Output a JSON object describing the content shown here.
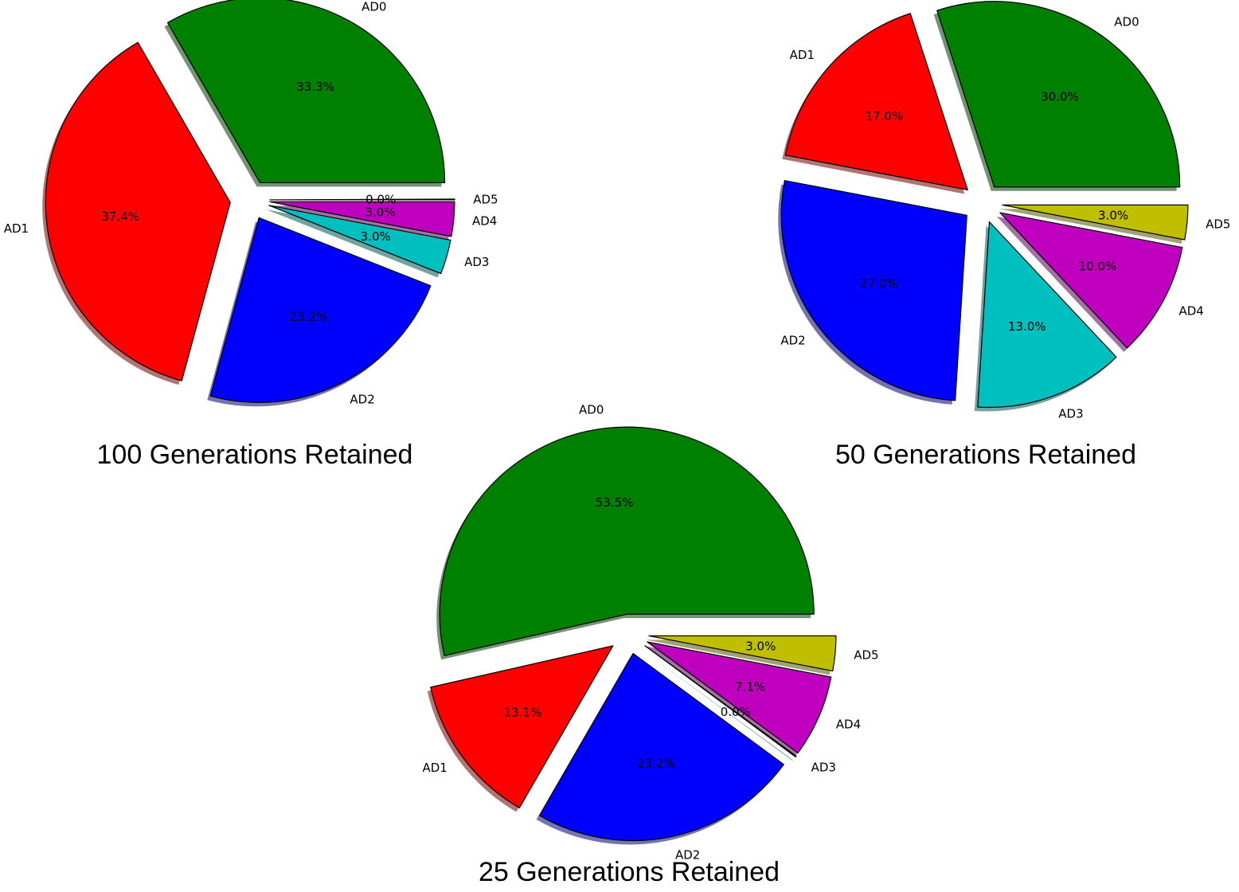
{
  "chart_data": [
    {
      "type": "pie",
      "title": "100 Generations Retained",
      "labels": [
        "AD0",
        "AD1",
        "AD2",
        "AD3",
        "AD4",
        "AD5"
      ],
      "values": [
        33.3,
        37.4,
        23.2,
        3.0,
        3.0,
        0.0
      ],
      "value_labels": [
        "33.3%",
        "37.4%",
        "23.2%",
        "3.0%",
        "3.0%",
        "0.0%"
      ],
      "colors": [
        "#008000",
        "#ff0000",
        "#0000ff",
        "#00bfbf",
        "#bf00bf",
        "#bfbf00"
      ],
      "start_angle_deg": 0,
      "direction": "counterclockwise",
      "exploded": true,
      "shadow": true,
      "legend": "none"
    },
    {
      "type": "pie",
      "title": "50 Generations Retained",
      "labels": [
        "AD0",
        "AD1",
        "AD2",
        "AD3",
        "AD4",
        "AD5"
      ],
      "values": [
        30.0,
        17.0,
        27.0,
        13.0,
        10.0,
        3.0
      ],
      "value_labels": [
        "30.0%",
        "17.0%",
        "27.0%",
        "13.0%",
        "10.0%",
        "3.0%"
      ],
      "colors": [
        "#008000",
        "#ff0000",
        "#0000ff",
        "#00bfbf",
        "#bf00bf",
        "#bfbf00"
      ],
      "start_angle_deg": 0,
      "direction": "counterclockwise",
      "exploded": true,
      "shadow": true,
      "legend": "none"
    },
    {
      "type": "pie",
      "title": "25 Generations Retained",
      "labels": [
        "AD0",
        "AD1",
        "AD2",
        "AD3",
        "AD4",
        "AD5"
      ],
      "values": [
        53.5,
        13.1,
        23.2,
        0.0,
        7.1,
        3.0
      ],
      "value_labels": [
        "53.5%",
        "13.1%",
        "23.2%",
        "0.0%",
        "7.1%",
        "3.0%"
      ],
      "colors": [
        "#008000",
        "#ff0000",
        "#0000ff",
        "#00bfbf",
        "#bf00bf",
        "#bfbf00"
      ],
      "start_angle_deg": 0,
      "direction": "counterclockwise",
      "exploded": true,
      "shadow": true,
      "legend": "none"
    }
  ]
}
